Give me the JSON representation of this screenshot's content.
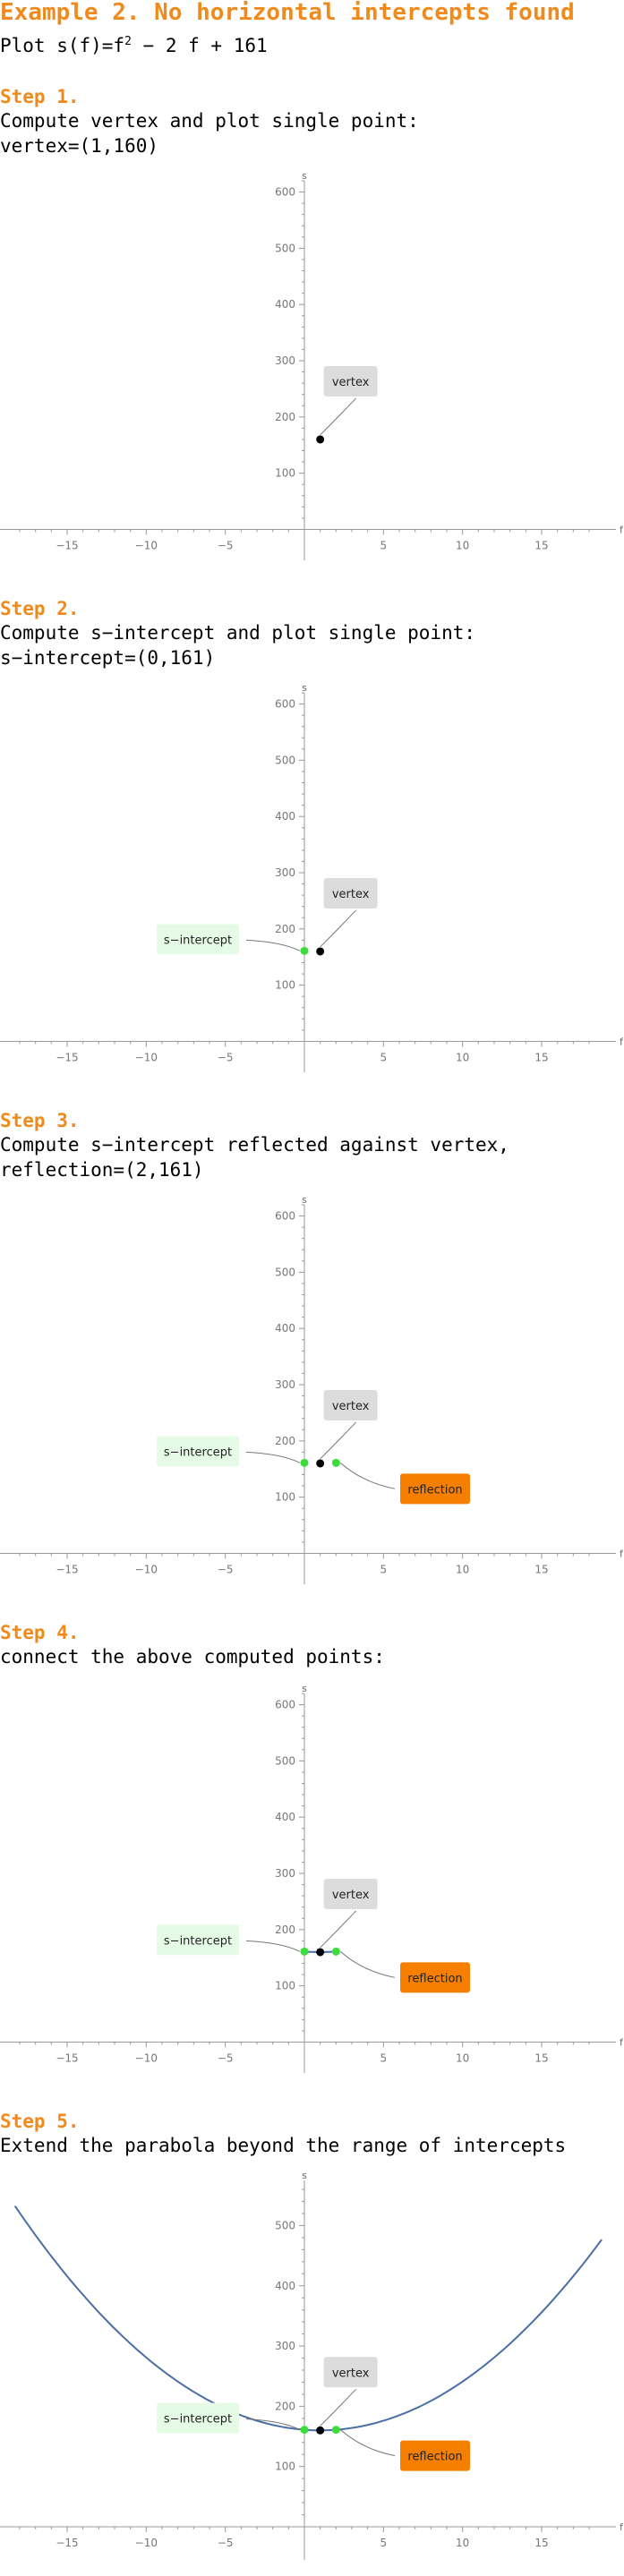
{
  "header": {
    "title": "Example 2. No horizontal intercepts found",
    "plot_prefix": "Plot ",
    "plot_fn": "s(f)=f",
    "plot_exp": "2",
    "plot_rest": " − 2 f + 161"
  },
  "steps": [
    {
      "label": "Step 1.",
      "lines": [
        "Compute vertex and plot single point:",
        "vertex=(1,160)"
      ]
    },
    {
      "label": "Step 2.",
      "lines": [
        "Compute s−intercept and plot single point:",
        "s−intercept=(0,161)"
      ]
    },
    {
      "label": "Step 3.",
      "lines": [
        "Compute s−intercept reflected against vertex,",
        "reflection=(2,161)"
      ]
    },
    {
      "label": "Step 4.",
      "lines": [
        "connect the above computed points:"
      ]
    },
    {
      "label": "Step 5.",
      "lines": [
        "Extend the parabola beyond the range of intercepts"
      ]
    }
  ],
  "colors": {
    "accent": "#f08a1c",
    "curve": "#4a6fa5",
    "point_vertex": "#000000",
    "point_intercept": "#3ddc3d",
    "callout_vertex_bg": "#dcdcdc",
    "callout_intercept_bg": "#e6fbe6",
    "callout_reflection_bg": "#f77f00",
    "axis": "#999999"
  },
  "chart_data": [
    {
      "type": "scatter",
      "xlabel": "f",
      "ylabel": "s",
      "xlim": [
        -19,
        19
      ],
      "ylim": [
        -55,
        620
      ],
      "xticks": [
        -15,
        -10,
        -5,
        5,
        10,
        15
      ],
      "yticks": [
        100,
        200,
        300,
        400,
        500,
        600
      ],
      "points": [
        {
          "x": 1,
          "y": 160,
          "kind": "vertex",
          "label": "vertex"
        }
      ],
      "curve": null
    },
    {
      "type": "scatter",
      "xlabel": "f",
      "ylabel": "s",
      "xlim": [
        -19,
        19
      ],
      "ylim": [
        -55,
        620
      ],
      "xticks": [
        -15,
        -10,
        -5,
        5,
        10,
        15
      ],
      "yticks": [
        100,
        200,
        300,
        400,
        500,
        600
      ],
      "points": [
        {
          "x": 1,
          "y": 160,
          "kind": "vertex",
          "label": "vertex"
        },
        {
          "x": 0,
          "y": 161,
          "kind": "intercept",
          "label": "s−intercept"
        }
      ],
      "curve": null
    },
    {
      "type": "scatter",
      "xlabel": "f",
      "ylabel": "s",
      "xlim": [
        -19,
        19
      ],
      "ylim": [
        -55,
        620
      ],
      "xticks": [
        -15,
        -10,
        -5,
        5,
        10,
        15
      ],
      "yticks": [
        100,
        200,
        300,
        400,
        500,
        600
      ],
      "points": [
        {
          "x": 1,
          "y": 160,
          "kind": "vertex",
          "label": "vertex"
        },
        {
          "x": 0,
          "y": 161,
          "kind": "intercept",
          "label": "s−intercept"
        },
        {
          "x": 2,
          "y": 161,
          "kind": "reflection",
          "label": "reflection"
        }
      ],
      "curve": null
    },
    {
      "type": "line",
      "xlabel": "f",
      "ylabel": "s",
      "xlim": [
        -19,
        19
      ],
      "ylim": [
        -55,
        620
      ],
      "xticks": [
        -15,
        -10,
        -5,
        5,
        10,
        15
      ],
      "yticks": [
        100,
        200,
        300,
        400,
        500,
        600
      ],
      "points": [
        {
          "x": 1,
          "y": 160,
          "kind": "vertex",
          "label": "vertex"
        },
        {
          "x": 0,
          "y": 161,
          "kind": "intercept",
          "label": "s−intercept"
        },
        {
          "x": 2,
          "y": 161,
          "kind": "reflection",
          "label": "reflection"
        }
      ],
      "curve": {
        "a": 1,
        "b": -2,
        "c": 161,
        "from": 0,
        "to": 2
      }
    },
    {
      "type": "line",
      "xlabel": "f",
      "ylabel": "s",
      "xlim": [
        -19,
        19
      ],
      "ylim": [
        -55,
        575
      ],
      "xticks": [
        -15,
        -10,
        -5,
        5,
        10,
        15
      ],
      "yticks": [
        100,
        200,
        300,
        400,
        500
      ],
      "points": [
        {
          "x": 1,
          "y": 160,
          "kind": "vertex",
          "label": "vertex"
        },
        {
          "x": 0,
          "y": 161,
          "kind": "intercept",
          "label": "s−intercept"
        },
        {
          "x": 2,
          "y": 161,
          "kind": "reflection",
          "label": "reflection"
        }
      ],
      "curve": {
        "a": 1,
        "b": -2,
        "c": 161,
        "from": -18.3,
        "to": 18.8
      }
    }
  ]
}
